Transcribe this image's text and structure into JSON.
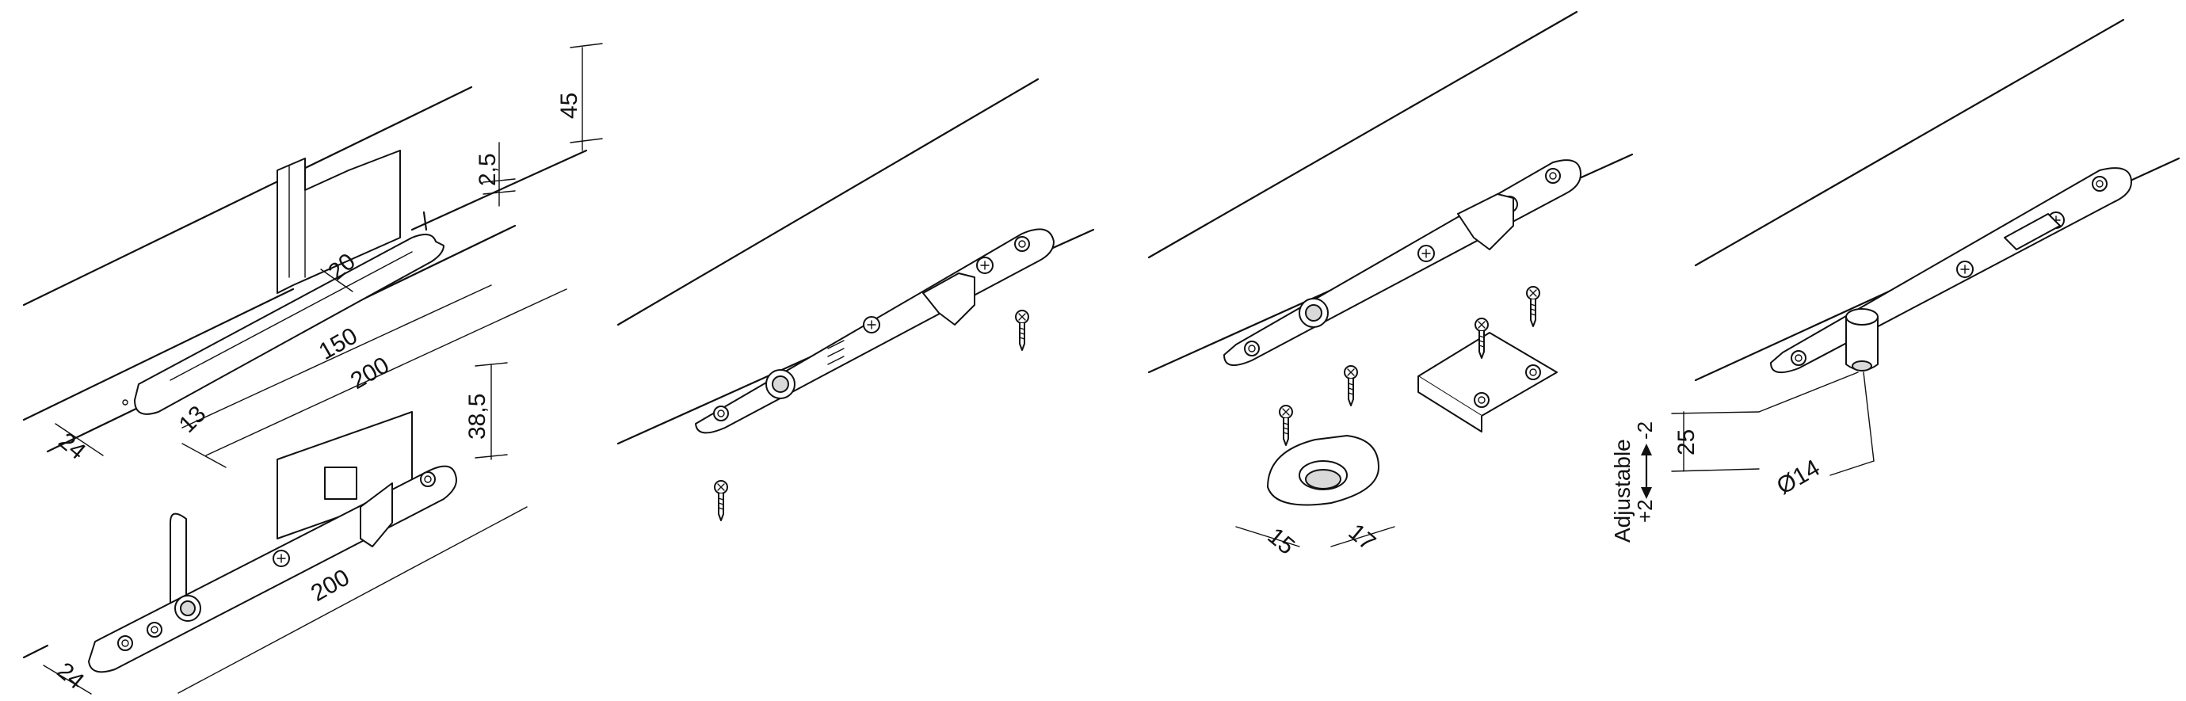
{
  "panel1": {
    "dim_45": "45",
    "dim_2_5": "2,5",
    "dim_20": "20",
    "dim_150": "150",
    "dim_200_top": "200",
    "dim_24_top": "24",
    "dim_13": "13",
    "dim_38_5": "38,5",
    "dim_200_bottom": "200",
    "dim_24_bottom": "24"
  },
  "panel3": {
    "dim_15": "15",
    "dim_17": "17"
  },
  "panel4": {
    "dim_25": "25",
    "label_adjustable": "Adjustable",
    "label_plus2": "+2",
    "label_minus2": "-2",
    "label_diameter": "Ø14"
  },
  "colors": {
    "line": "#111111",
    "part_fill": "#ffffff",
    "shade": "#d9d9d9"
  }
}
